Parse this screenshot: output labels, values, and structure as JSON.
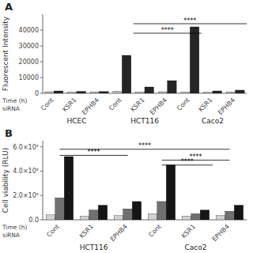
{
  "chart_data": [
    {
      "type": "bar",
      "title": "A",
      "y_label": "Fluorescent Intensity",
      "categories": [
        "Cont",
        "KSR1",
        "EPHB4",
        "Cont",
        "KSR1",
        "EPHB4",
        "Cont",
        "KSR1",
        "EPHB4"
      ],
      "series": [
        {
          "color": "#b8b8b8",
          "values": [
            1000,
            800,
            900,
            1200,
            800,
            1000,
            800,
            700,
            900
          ]
        },
        {
          "color": "#252525",
          "values": [
            1500,
            1200,
            1100,
            24000,
            4000,
            8000,
            42000,
            1500,
            2000
          ]
        }
      ],
      "ylim": [
        0,
        50000
      ],
      "yticks": [
        0,
        10000,
        20000,
        30000,
        40000
      ],
      "annotations": [
        {
          "text": "****",
          "x": [
            3.5,
            8.5
          ],
          "y": 44000
        },
        {
          "text": "****",
          "x": [
            3.5,
            6.5
          ],
          "y": 38000
        },
        {
          "text": "HCEC",
          "x": 1
        },
        {
          "text": "HCT116",
          "x": 4
        },
        {
          "text": "Caco2",
          "x": 7
        },
        {
          "text": "Time (h)"
        },
        {
          "text": "siRNA"
        }
      ]
    },
    {
      "type": "bar",
      "title": "B",
      "y_label": "Cell viability (RLU)",
      "categories": [
        "Cont",
        "KSR1",
        "EPHB4",
        "Cont",
        "KSR1",
        "EPHB4"
      ],
      "series": [
        {
          "color": "#d0d0d0",
          "values": [
            40000,
            30000,
            35000,
            50000,
            30000,
            35000
          ]
        },
        {
          "color": "#707070",
          "values": [
            180000,
            80000,
            90000,
            150000,
            50000,
            70000
          ]
        },
        {
          "color": "#151515",
          "values": [
            520000,
            120000,
            150000,
            450000,
            80000,
            120000
          ]
        }
      ],
      "ylim": [
        0,
        650000
      ],
      "yticks": [
        {
          "value": 0,
          "label": "0.0"
        },
        {
          "value": 200000,
          "label": "2.0×10⁵"
        },
        {
          "value": 400000,
          "label": "4.0×10⁵"
        },
        {
          "value": 600000,
          "label": "6.0×10⁵"
        }
      ],
      "annotations": [
        {
          "text": "****",
          "x": [
            0,
            5
          ],
          "y": 580000
        },
        {
          "text": "****",
          "x": [
            0,
            2
          ],
          "y": 530000
        },
        {
          "text": "****",
          "x": [
            3,
            5
          ],
          "y": 490000
        },
        {
          "text": "****",
          "x": [
            3,
            4.5
          ],
          "y": 450000
        },
        {
          "text": "HCT116",
          "x": 1
        },
        {
          "text": "Caco2",
          "x": 4
        },
        {
          "text": "Time (h)"
        },
        {
          "text": "siRNA"
        }
      ]
    }
  ]
}
